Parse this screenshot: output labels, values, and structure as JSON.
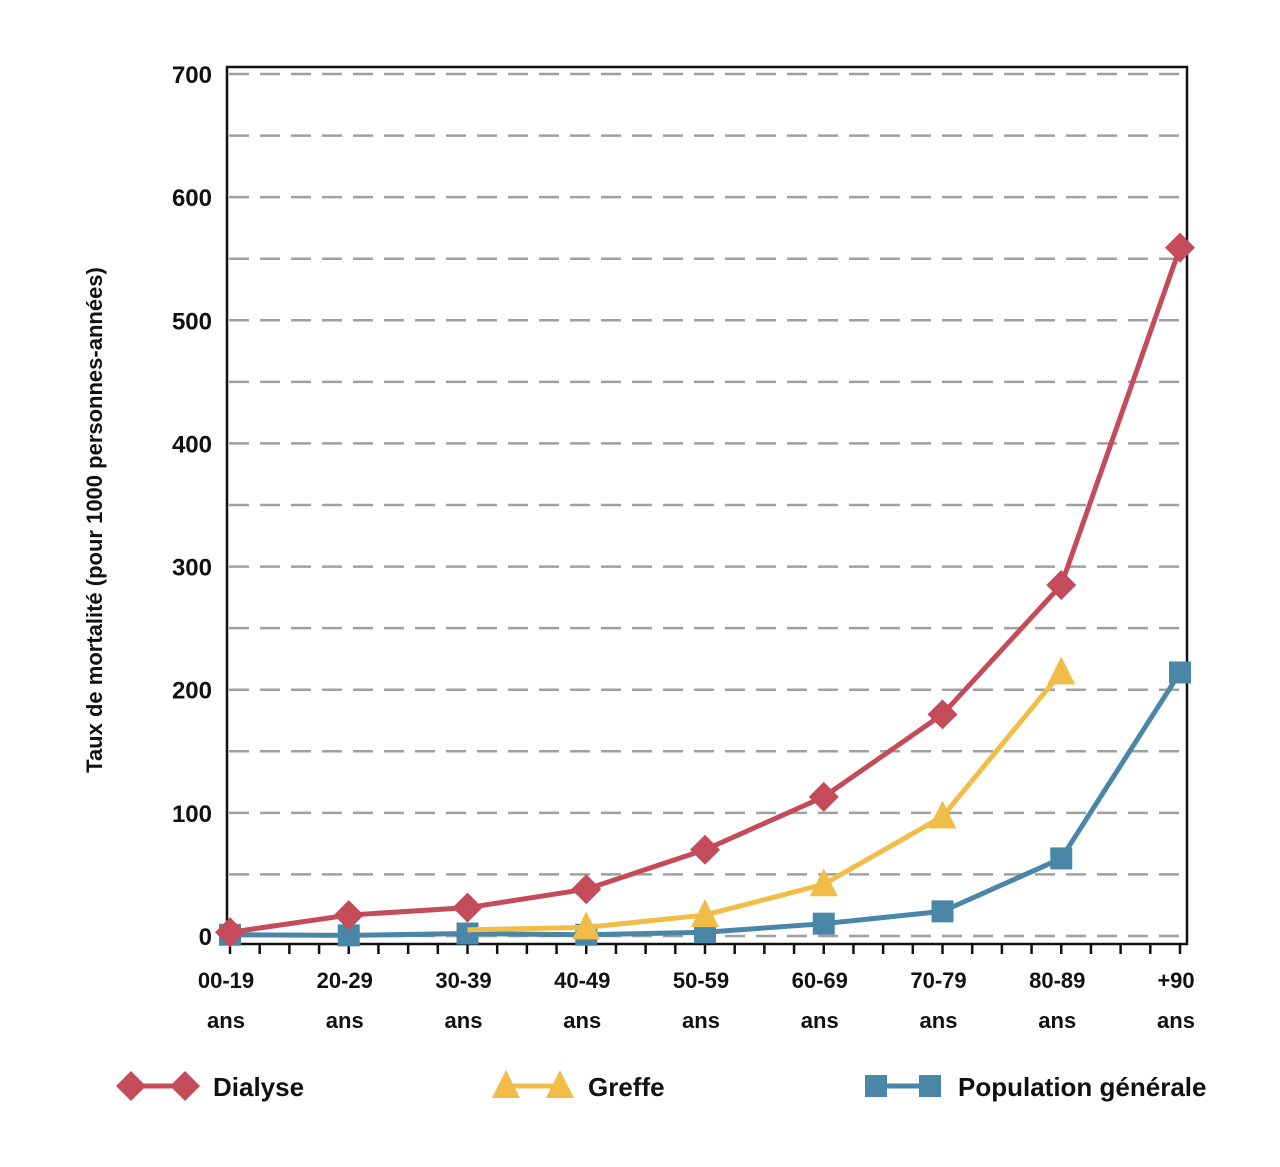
{
  "chart_data": {
    "type": "line",
    "title": "",
    "xlabel": "",
    "ylabel": "Taux de mortalité (pour 1000 personnes-années)",
    "ylim": [
      0,
      700
    ],
    "yticks": [
      0,
      100,
      200,
      300,
      400,
      500,
      600,
      700
    ],
    "minor_gridlines_every": 50,
    "grid": true,
    "legend_position": "bottom",
    "categories": [
      {
        "line1": "00-19",
        "line2": "ans"
      },
      {
        "line1": "20-29",
        "line2": "ans"
      },
      {
        "line1": "30-39",
        "line2": "ans"
      },
      {
        "line1": "40-49",
        "line2": "ans"
      },
      {
        "line1": "50-59",
        "line2": "ans"
      },
      {
        "line1": "60-69",
        "line2": "ans"
      },
      {
        "line1": "70-79",
        "line2": "ans"
      },
      {
        "line1": "80-89",
        "line2": "ans"
      },
      {
        "line1": "+90",
        "line2": "ans"
      }
    ],
    "series": [
      {
        "name": "Dialyse",
        "color": "#C44B5A",
        "marker": "diamond",
        "values": [
          3,
          17,
          23,
          38,
          70,
          113,
          180,
          285,
          559
        ]
      },
      {
        "name": "Greffe",
        "color": "#F0BE48",
        "marker": "triangle",
        "values": [
          null,
          null,
          5,
          7,
          17,
          42,
          97,
          214,
          null
        ],
        "marker_from_index": 3
      },
      {
        "name": "Population générale",
        "color": "#4A86A8",
        "marker": "square",
        "values": [
          1,
          0.5,
          2,
          1,
          3,
          10,
          20,
          63,
          214
        ]
      }
    ]
  }
}
